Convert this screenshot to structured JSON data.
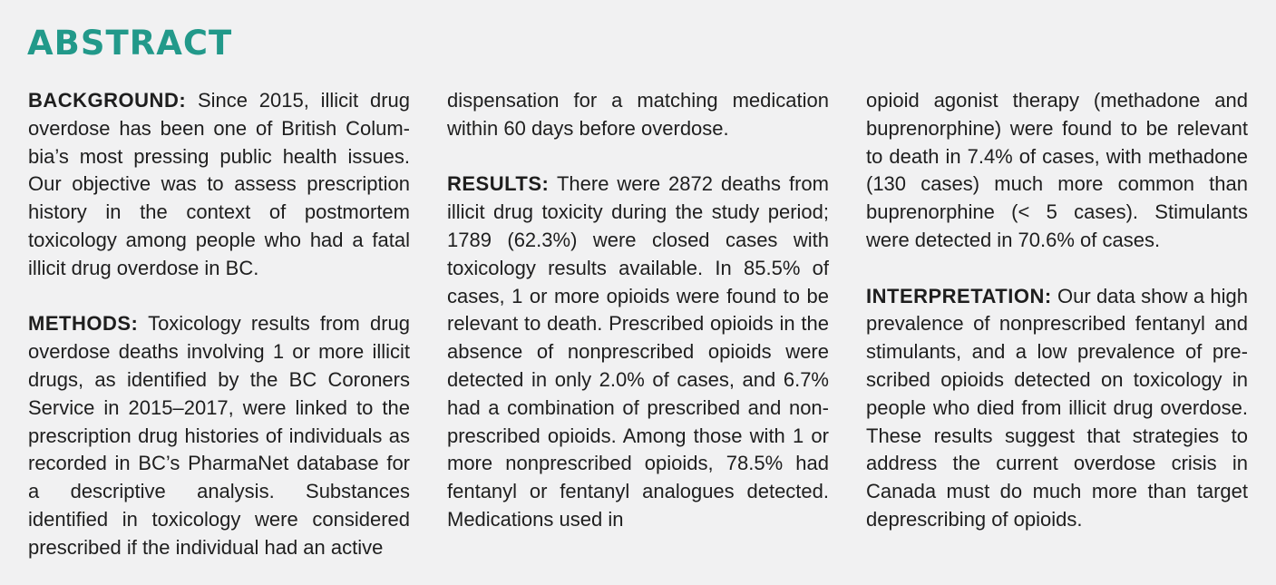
{
  "title": "ABSTRACT",
  "background": {
    "label": "BACKGROUND:",
    "text": "Since 2015, illicit drug overdose has been one of British Colum­bia’s most pressing public health issues. Our objective was to assess prescription history in the context of postmortem toxicology among people who had a fatal illicit drug overdose in BC."
  },
  "methods": {
    "label": "METHODS:",
    "text_part1": "Toxicology results from drug overdose deaths involving 1 or more illicit drugs, as identified by the BC Coroners Service in 2015–2017, were linked to the prescription drug histories of individuals as recorded in BC’s PharmaNet database for a descriptive analysis. Substances identified in toxicology were considered prescribed if the individual had an active",
    "text_part2": "dispensation for a matching medication within 60 days before overdose."
  },
  "results": {
    "label": "RESULTS:",
    "text_part1": "There were 2872 deaths from illicit drug toxicity during the study period; 1789 (62.3%) were closed cases with toxicology results available. In 85.5% of cases, 1 or more opioids were found to be relevant to death. Prescribed opioids in the absence of nonprescribed opioids were detected in only 2.0% of cases, and 6.7% had a combination of prescribed and non­prescribed opioids. Among those with 1 or more nonprescribed opioids, 78.5% had fentanyl or fentanyl ana­logues detected. Medications used in",
    "text_part2": "opioid agonist therapy (methadone and buprenorphine) were found to be relevant to death in 7.4% of cases, with methadone (130 cases) much more common than buprenorphine (< 5 cases). Stimulants were detected in 70.6% of cases."
  },
  "interpretation": {
    "label": "INTERPRETATION:",
    "text": "Our data show a high prevalence of nonprescribed fentanyl and stimulants, and a low prevalence of pre­scribed opioids detected on toxicology in people who died from illicit drug over­dose. These results suggest that strate­gies to address the current overdose crisis in Canada must do much more than tar­get deprescribing of opioids."
  },
  "colors": {
    "title": "#22998a",
    "text": "#1e1e1e",
    "background": "#f1f1f2"
  }
}
